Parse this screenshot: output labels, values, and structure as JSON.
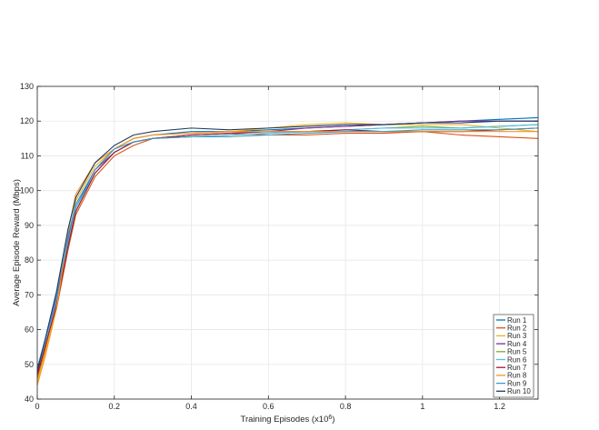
{
  "chart_data": {
    "type": "line",
    "xlabel": "Training Episodes (x10",
    "xlabel_exponent": "6",
    "xlabel_suffix": ")",
    "ylabel": "Average Episode Reward (Mbps)",
    "xlim": [
      0,
      1.3
    ],
    "ylim": [
      40,
      130
    ],
    "xticks": [
      0,
      0.2,
      0.4,
      0.6,
      0.8,
      1,
      1.2
    ],
    "xtick_labels": [
      "0",
      "0.2",
      "0.4",
      "0.6",
      "0.8",
      "1",
      "1.2"
    ],
    "yticks": [
      40,
      50,
      60,
      70,
      80,
      90,
      100,
      110,
      120,
      130
    ],
    "ytick_labels": [
      "40",
      "50",
      "60",
      "70",
      "80",
      "90",
      "100",
      "110",
      "120",
      "130"
    ],
    "grid": true,
    "legend_position": "bottom-right",
    "series": [
      {
        "name": "Run 1",
        "color": "#0072BD",
        "x": [
          0,
          0.02,
          0.05,
          0.08,
          0.1,
          0.15,
          0.2,
          0.25,
          0.3,
          0.4,
          0.5,
          0.6,
          0.7,
          0.8,
          0.9,
          1.0,
          1.1,
          1.2,
          1.3
        ],
        "y": [
          47,
          55,
          68,
          85,
          95,
          106,
          112,
          115,
          116,
          117,
          117,
          117.5,
          118,
          118.5,
          119,
          119.5,
          120,
          120.5,
          121
        ]
      },
      {
        "name": "Run 2",
        "color": "#D95319",
        "x": [
          0,
          0.02,
          0.05,
          0.08,
          0.1,
          0.15,
          0.2,
          0.25,
          0.3,
          0.4,
          0.5,
          0.6,
          0.7,
          0.8,
          0.9,
          1.0,
          1.1,
          1.2,
          1.3
        ],
        "y": [
          46,
          54,
          66,
          83,
          93,
          104,
          110,
          113,
          115,
          116,
          116.5,
          116,
          116,
          116.5,
          116.5,
          117,
          116,
          115.5,
          115
        ]
      },
      {
        "name": "Run 3",
        "color": "#EDB120",
        "x": [
          0,
          0.02,
          0.05,
          0.08,
          0.1,
          0.15,
          0.2,
          0.25,
          0.3,
          0.4,
          0.5,
          0.6,
          0.7,
          0.8,
          0.9,
          1.0,
          1.1,
          1.2,
          1.3
        ],
        "y": [
          45,
          53,
          67,
          86,
          97,
          107,
          112,
          115,
          116,
          116.5,
          117,
          118,
          119,
          119.5,
          119,
          119,
          119,
          118,
          117
        ]
      },
      {
        "name": "Run 4",
        "color": "#7E2F8E",
        "x": [
          0,
          0.02,
          0.05,
          0.08,
          0.1,
          0.15,
          0.2,
          0.25,
          0.3,
          0.4,
          0.5,
          0.6,
          0.7,
          0.8,
          0.9,
          1.0,
          1.1,
          1.2,
          1.3
        ],
        "y": [
          48,
          56,
          69,
          86,
          96,
          106,
          111,
          114,
          115,
          116,
          116.5,
          117,
          118,
          118.5,
          119,
          119.5,
          120,
          120,
          120
        ]
      },
      {
        "name": "Run 5",
        "color": "#77AC30",
        "x": [
          0,
          0.02,
          0.05,
          0.08,
          0.1,
          0.15,
          0.2,
          0.25,
          0.3,
          0.4,
          0.5,
          0.6,
          0.7,
          0.8,
          0.9,
          1.0,
          1.1,
          1.2,
          1.3
        ],
        "y": [
          47,
          55,
          68,
          84,
          94,
          105,
          111,
          114,
          115,
          115.5,
          116,
          116.5,
          117,
          117.5,
          118,
          118.5,
          118,
          118.5,
          119
        ]
      },
      {
        "name": "Run 6",
        "color": "#4DBEEE",
        "x": [
          0,
          0.02,
          0.05,
          0.08,
          0.1,
          0.15,
          0.2,
          0.25,
          0.3,
          0.4,
          0.5,
          0.6,
          0.7,
          0.8,
          0.9,
          1.0,
          1.1,
          1.2,
          1.3
        ],
        "y": [
          48,
          56,
          68,
          85,
          95,
          105,
          111,
          114,
          115,
          115.5,
          116,
          116.5,
          117,
          117.5,
          118,
          118,
          118,
          118.5,
          119
        ]
      },
      {
        "name": "Run 7",
        "color": "#A2142F",
        "x": [
          0,
          0.02,
          0.05,
          0.08,
          0.1,
          0.15,
          0.2,
          0.25,
          0.3,
          0.4,
          0.5,
          0.6,
          0.7,
          0.8,
          0.9,
          1.0,
          1.1,
          1.2,
          1.3
        ],
        "y": [
          47,
          55,
          67,
          84,
          94,
          105,
          111,
          114,
          115,
          116,
          116.5,
          117,
          117,
          117.5,
          117,
          117,
          117,
          117.5,
          118
        ]
      },
      {
        "name": "Run 8",
        "color": "#F7941D",
        "x": [
          0,
          0.02,
          0.05,
          0.08,
          0.1,
          0.15,
          0.2,
          0.25,
          0.3,
          0.4,
          0.5,
          0.6,
          0.7,
          0.8,
          0.9,
          1.0,
          1.1,
          1.2,
          1.3
        ],
        "y": [
          44,
          52,
          66,
          88,
          99,
          108,
          112,
          115,
          116,
          116.5,
          117,
          117,
          117,
          117,
          117,
          117,
          117,
          117,
          117
        ]
      },
      {
        "name": "Run 9",
        "color": "#3D9BC4",
        "x": [
          0,
          0.02,
          0.05,
          0.08,
          0.1,
          0.15,
          0.2,
          0.25,
          0.3,
          0.4,
          0.5,
          0.6,
          0.7,
          0.8,
          0.9,
          1.0,
          1.1,
          1.2,
          1.3
        ],
        "y": [
          49,
          57,
          70,
          87,
          96,
          106,
          112,
          114,
          115,
          115.5,
          115.5,
          116,
          116.5,
          117,
          117,
          117.5,
          117.5,
          117.5,
          118
        ]
      },
      {
        "name": "Run 10",
        "color": "#1F3A5F",
        "x": [
          0,
          0.02,
          0.05,
          0.08,
          0.1,
          0.15,
          0.2,
          0.25,
          0.3,
          0.4,
          0.5,
          0.6,
          0.7,
          0.8,
          0.9,
          1.0,
          1.1,
          1.2,
          1.3
        ],
        "y": [
          48,
          57,
          71,
          89,
          98,
          108,
          113,
          116,
          117,
          118,
          117.5,
          118,
          118.5,
          119,
          119,
          119.5,
          119.5,
          120,
          120
        ]
      }
    ]
  }
}
